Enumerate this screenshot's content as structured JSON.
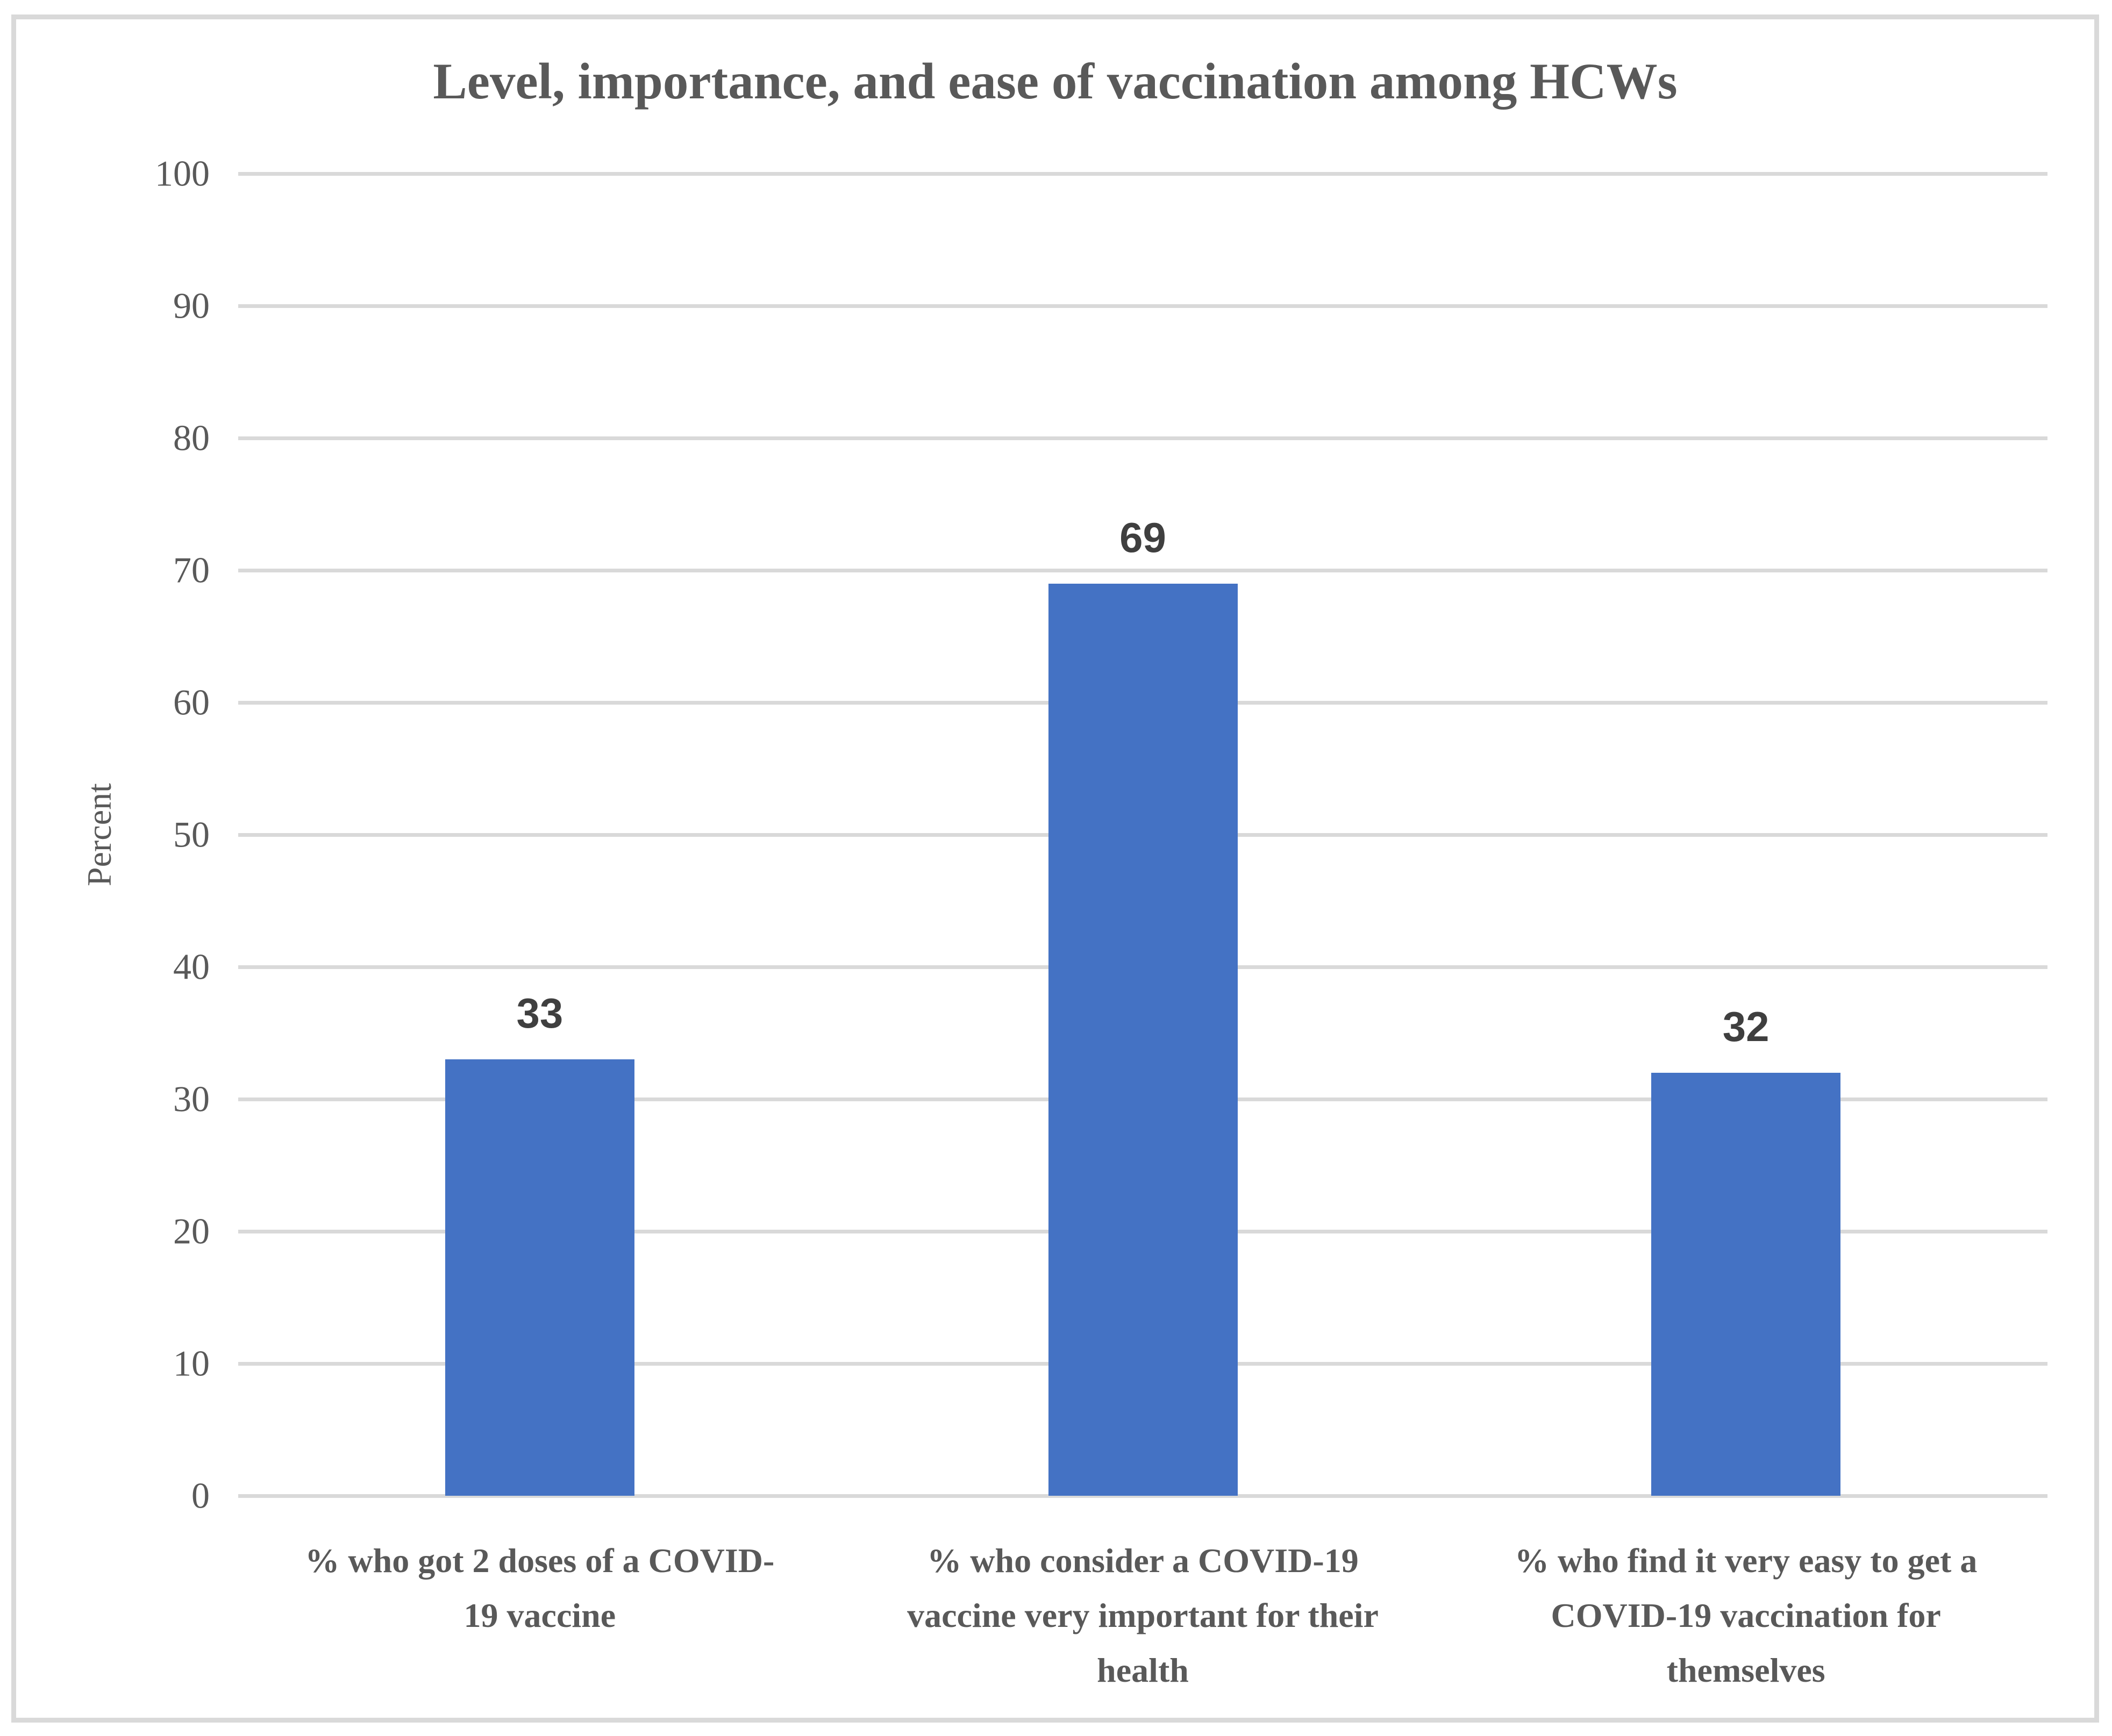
{
  "chart_data": {
    "type": "bar",
    "title": "Level, importance, and ease of vaccination among HCWs",
    "ylabel": "Percent",
    "xlabel": "",
    "ylim": [
      0,
      100
    ],
    "yticks": [
      0,
      10,
      20,
      30,
      40,
      50,
      60,
      70,
      80,
      90,
      100
    ],
    "categories": [
      "% who got 2 doses of a COVID-\n19 vaccine",
      "% who consider a COVID-19\nvaccine very important for their\nhealth",
      "% who find it very easy to get a\nCOVID-19 vaccination for\nthemselves"
    ],
    "values": [
      33,
      69,
      32
    ],
    "data_labels": [
      "33",
      "69",
      "32"
    ],
    "legend_position": "none",
    "grid": true,
    "colors": {
      "bar": "#4472C4",
      "gridline": "#D9D9D9",
      "frame_border": "#D9D9D9",
      "axis_text": "#595959",
      "title_text": "#595959",
      "data_label_text": "#3F3F3F",
      "background": "#FFFFFF"
    }
  }
}
